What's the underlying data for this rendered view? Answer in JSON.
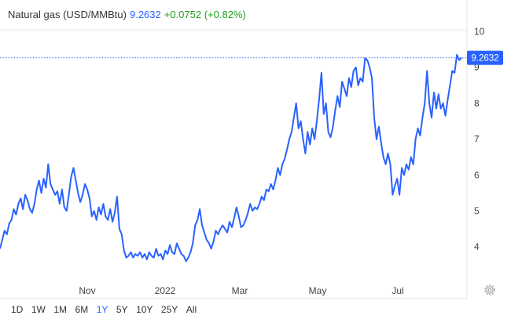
{
  "header": {
    "instrument": "Natural gas (USD/MMBtu)",
    "price": "9.2632",
    "change": "+0.0752 (+0.82%)"
  },
  "price_tag": "9.2632",
  "ranges": [
    "1D",
    "1W",
    "1M",
    "6M",
    "1Y",
    "5Y",
    "10Y",
    "25Y",
    "All"
  ],
  "active_range": "1Y",
  "colors": {
    "line": "#2962ff",
    "accent": "#2962ff",
    "positive": "#20a020",
    "axis_text": "#444444",
    "grid": "#e6e6e6"
  },
  "icons": {
    "settings": "gear-icon"
  },
  "chart_data": {
    "type": "line",
    "title": "Natural gas (USD/MMBtu)",
    "x_tick_labels": [
      "Nov",
      "2022",
      "Mar",
      "May",
      "Jul"
    ],
    "y_ticks": [
      4,
      5,
      6,
      7,
      8,
      9,
      10
    ],
    "ylim": [
      3.0,
      10.8
    ],
    "grid": false,
    "last_value": 9.2632,
    "series": [
      {
        "values": [
          3.95,
          4.2,
          4.45,
          4.35,
          4.65,
          4.75,
          5.05,
          4.9,
          5.2,
          5.35,
          5.05,
          5.45,
          5.3,
          5.05,
          4.95,
          5.2,
          5.6,
          5.85,
          5.5,
          5.9,
          5.65,
          6.3,
          5.75,
          5.6,
          5.45,
          5.55,
          5.2,
          5.6,
          5.1,
          5.0,
          5.45,
          5.95,
          6.2,
          5.85,
          5.5,
          5.25,
          5.45,
          5.75,
          5.6,
          5.35,
          4.85,
          5.0,
          4.75,
          5.1,
          4.9,
          5.2,
          4.85,
          4.75,
          5.05,
          4.7,
          4.95,
          5.4,
          4.5,
          4.35,
          3.9,
          3.7,
          3.75,
          3.85,
          3.7,
          3.8,
          3.75,
          3.85,
          3.7,
          3.8,
          3.65,
          3.85,
          3.75,
          3.7,
          3.95,
          3.75,
          3.8,
          3.65,
          3.9,
          3.8,
          4.05,
          3.85,
          3.8,
          4.1,
          3.95,
          3.8,
          3.75,
          3.6,
          3.7,
          3.85,
          4.1,
          4.6,
          4.75,
          5.05,
          4.6,
          4.4,
          4.2,
          4.1,
          3.95,
          4.15,
          4.45,
          4.35,
          4.5,
          4.6,
          4.5,
          4.4,
          4.7,
          4.55,
          4.8,
          5.1,
          4.85,
          4.55,
          4.6,
          4.75,
          4.95,
          5.2,
          5.0,
          5.1,
          5.05,
          5.2,
          5.4,
          5.3,
          5.6,
          5.55,
          5.75,
          5.6,
          5.85,
          6.2,
          6.0,
          6.3,
          6.45,
          6.7,
          7.0,
          7.2,
          7.6,
          8.0,
          7.3,
          7.5,
          7.0,
          6.6,
          7.2,
          6.85,
          7.3,
          7.0,
          7.5,
          8.1,
          8.85,
          7.7,
          8.0,
          7.2,
          7.05,
          7.35,
          7.8,
          8.2,
          7.9,
          8.6,
          8.4,
          8.2,
          8.7,
          8.45,
          8.9,
          9.0,
          8.5,
          8.7,
          8.6,
          9.25,
          9.2,
          9.0,
          8.7,
          7.6,
          7.0,
          7.35,
          6.9,
          6.5,
          6.3,
          6.6,
          6.3,
          5.45,
          5.7,
          5.9,
          5.45,
          6.2,
          6.0,
          6.3,
          6.15,
          6.5,
          6.3,
          7.0,
          7.3,
          7.1,
          7.6,
          8.0,
          8.9,
          8.0,
          7.6,
          8.3,
          7.85,
          8.25,
          7.85,
          8.0,
          7.65,
          8.1,
          8.5,
          8.9,
          8.85,
          9.35,
          9.2,
          9.2632
        ]
      }
    ]
  }
}
